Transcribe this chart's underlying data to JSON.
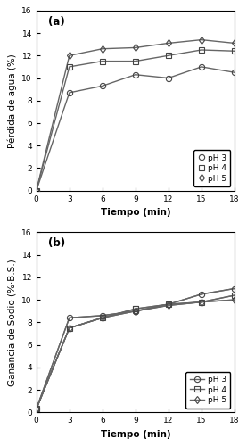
{
  "panel_a": {
    "label": "(a)",
    "ylabel": "Pérdida de agua (%)",
    "xlabel": "Tiempo (min)",
    "xlim": [
      0,
      18
    ],
    "ylim": [
      0,
      16
    ],
    "xticks": [
      0,
      3,
      6,
      9,
      12,
      15,
      18
    ],
    "yticks": [
      0,
      2,
      4,
      6,
      8,
      10,
      12,
      14,
      16
    ],
    "series": [
      {
        "label": "pH 3",
        "marker": "o",
        "x": [
          0,
          3,
          6,
          9,
          12,
          15,
          18
        ],
        "y": [
          0,
          8.7,
          9.3,
          10.3,
          10.0,
          11.0,
          10.5
        ]
      },
      {
        "label": "pH 4",
        "marker": "s",
        "x": [
          0,
          3,
          6,
          9,
          12,
          15,
          18
        ],
        "y": [
          0,
          11.0,
          11.5,
          11.5,
          12.0,
          12.5,
          12.4
        ]
      },
      {
        "label": "pH 5",
        "marker": "d",
        "x": [
          0,
          3,
          6,
          9,
          12,
          15,
          18
        ],
        "y": [
          0,
          12.0,
          12.6,
          12.7,
          13.1,
          13.4,
          13.1
        ]
      }
    ]
  },
  "panel_b": {
    "label": "(b)",
    "ylabel": "Ganancia de Sodio (%·B.S.)",
    "ylabel2": "Ganancia de Sodio (% B.S.)",
    "xlabel": "Tiempo (min)",
    "xlim": [
      0,
      18
    ],
    "ylim": [
      0,
      16
    ],
    "xticks": [
      0,
      3,
      6,
      9,
      12,
      15,
      18
    ],
    "yticks": [
      0,
      2,
      4,
      6,
      8,
      10,
      12,
      14,
      16
    ],
    "series": [
      {
        "label": "pH 3",
        "marker": "o",
        "x": [
          0,
          3,
          6,
          9,
          12,
          15,
          18
        ],
        "y": [
          0.3,
          8.4,
          8.6,
          9.0,
          9.6,
          10.5,
          11.0
        ]
      },
      {
        "label": "pH 4",
        "marker": "s",
        "x": [
          0,
          3,
          6,
          9,
          12,
          15,
          18
        ],
        "y": [
          0.3,
          7.5,
          8.4,
          9.2,
          9.6,
          9.8,
          10.4
        ]
      },
      {
        "label": "pH 5",
        "marker": "d",
        "x": [
          0,
          3,
          6,
          9,
          12,
          15,
          18
        ],
        "y": [
          0.3,
          7.5,
          8.4,
          9.0,
          9.5,
          9.8,
          10.0
        ]
      }
    ]
  },
  "line_color": "#666666",
  "marker_color": "#444444",
  "marker_size": 4.5,
  "marker_edge_width": 0.8,
  "line_width": 1.0,
  "bg_color": "#ffffff",
  "font_size_label": 7.5,
  "font_size_tick": 6.5,
  "font_size_legend": 6.5,
  "font_size_panel_label": 8.5
}
